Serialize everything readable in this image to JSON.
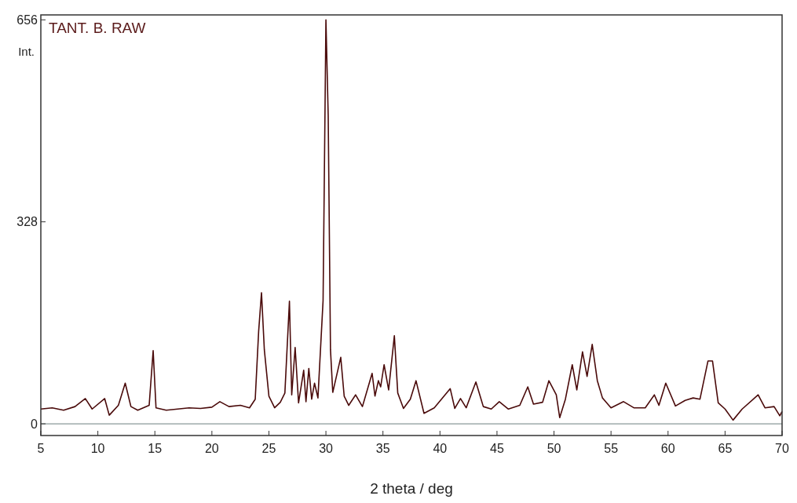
{
  "chart_data": {
    "type": "line",
    "title": "TANT. B. RAW",
    "xlabel": "2 theta / deg",
    "ylabel": "Int.",
    "xlim": [
      5,
      70
    ],
    "xticks": [
      5,
      10,
      15,
      20,
      25,
      30,
      35,
      40,
      45,
      50,
      55,
      60,
      65,
      70
    ],
    "ylim": [
      -19,
      664
    ],
    "yticks": [
      0,
      328,
      656
    ],
    "grid": false,
    "line_style": "solid",
    "ref_lines": [
      {
        "axis": "y",
        "value": 0,
        "color": "#8a9a9a"
      }
    ],
    "series": [
      {
        "color": "#4a0a0a",
        "x": [
          5,
          6,
          7,
          8,
          8.9,
          9.5,
          10.6,
          11,
          11.8,
          12.4,
          12.9,
          13.5,
          14.5,
          14.85,
          15.1,
          16,
          17,
          18,
          19,
          20,
          20.7,
          21.5,
          22.5,
          23.3,
          23.8,
          24.1,
          24.35,
          24.6,
          25,
          25.5,
          26,
          26.4,
          26.8,
          27.0,
          27.3,
          27.6,
          28.05,
          28.25,
          28.5,
          28.75,
          29.0,
          29.3,
          29.75,
          30.0,
          30.2,
          30.4,
          30.6,
          31.3,
          31.6,
          32.0,
          32.6,
          33.2,
          34.05,
          34.3,
          34.6,
          34.8,
          35.1,
          35.5,
          36.0,
          36.3,
          36.8,
          37.4,
          37.9,
          38.6,
          39.5,
          40.9,
          41.3,
          41.8,
          42.3,
          43.15,
          43.8,
          44.5,
          45.2,
          46,
          47,
          47.7,
          48.2,
          49.0,
          49.55,
          50.2,
          50.5,
          51.0,
          51.6,
          52.0,
          52.5,
          52.9,
          53.35,
          53.8,
          54.25,
          55,
          56.1,
          57,
          58,
          58.8,
          59.2,
          59.8,
          60.65,
          61.5,
          62.2,
          62.8,
          63.5,
          63.9,
          64.4,
          65,
          65.7,
          66.5,
          67.9,
          68.5,
          69.3,
          69.8,
          70
        ],
        "values": [
          24,
          26,
          22,
          28,
          41,
          24,
          41,
          14,
          30,
          66,
          28,
          22,
          30,
          119,
          26,
          22,
          24,
          26,
          25,
          27,
          36,
          28,
          30,
          26,
          40,
          150,
          213,
          120,
          45,
          26,
          35,
          50,
          199,
          47,
          124,
          34,
          87,
          36,
          90,
          40,
          66,
          42,
          200,
          656,
          500,
          120,
          51,
          108,
          45,
          30,
          47,
          28,
          82,
          45,
          70,
          60,
          96,
          55,
          143,
          50,
          25,
          40,
          70,
          17,
          26,
          57,
          25,
          41,
          26,
          68,
          28,
          24,
          36,
          24,
          30,
          60,
          32,
          35,
          70,
          47,
          10,
          40,
          96,
          55,
          117,
          77,
          129,
          70,
          42,
          26,
          36,
          26,
          26,
          47,
          30,
          66,
          29,
          38,
          42,
          40,
          102,
          102,
          34,
          24,
          6,
          24,
          47,
          26,
          28,
          13,
          20
        ]
      }
    ]
  }
}
